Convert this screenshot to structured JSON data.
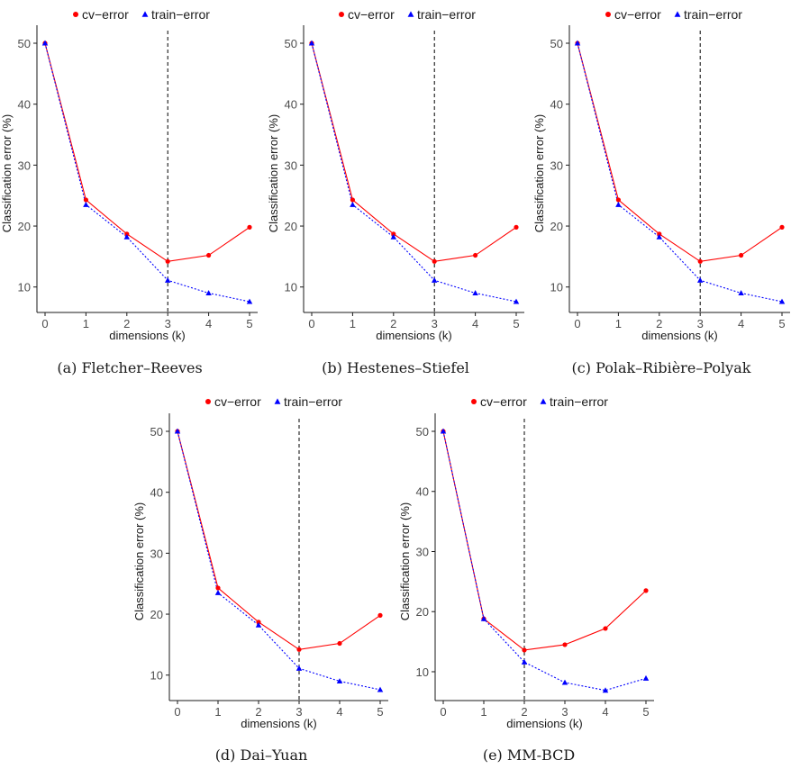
{
  "colors": {
    "cv": "#ff0000",
    "train": "#0000ff",
    "axis": "#1a1a1a",
    "vline": "#000000"
  },
  "legend": {
    "cv_label": "cv−error",
    "train_label": "train−error"
  },
  "chart_data": [
    {
      "type": "line",
      "caption": "(a) Fletcher–Reeves",
      "xlabel": "dimensions (k)",
      "ylabel": "Classification error (%)",
      "x": [
        0,
        1,
        2,
        3,
        4,
        5
      ],
      "xlim": [
        0,
        5
      ],
      "ylim": [
        7.3,
        50
      ],
      "yticks": [
        10,
        20,
        30,
        40,
        50
      ],
      "vline": 3,
      "legend": "top",
      "series": [
        {
          "name": "cv−error",
          "values": [
            50,
            24.3,
            18.7,
            14.2,
            15.2,
            19.8
          ]
        },
        {
          "name": "train−error",
          "values": [
            50,
            23.5,
            18.2,
            11.1,
            9.0,
            7.6
          ]
        }
      ]
    },
    {
      "type": "line",
      "caption": "(b) Hestenes–Stiefel",
      "xlabel": "dimensions (k)",
      "ylabel": "Classification error (%)",
      "x": [
        0,
        1,
        2,
        3,
        4,
        5
      ],
      "xlim": [
        0,
        5
      ],
      "ylim": [
        7.3,
        50
      ],
      "yticks": [
        10,
        20,
        30,
        40,
        50
      ],
      "vline": 3,
      "legend": "top",
      "series": [
        {
          "name": "cv−error",
          "values": [
            50,
            24.3,
            18.7,
            14.2,
            15.2,
            19.8
          ]
        },
        {
          "name": "train−error",
          "values": [
            50,
            23.5,
            18.2,
            11.1,
            9.0,
            7.6
          ]
        }
      ]
    },
    {
      "type": "line",
      "caption": "(c) Polak–Ribière–Polyak",
      "xlabel": "dimensions (k)",
      "ylabel": "Classification error (%)",
      "x": [
        0,
        1,
        2,
        3,
        4,
        5
      ],
      "xlim": [
        0,
        5
      ],
      "ylim": [
        7.3,
        50
      ],
      "yticks": [
        10,
        20,
        30,
        40,
        50
      ],
      "vline": 3,
      "legend": "top",
      "series": [
        {
          "name": "cv−error",
          "values": [
            50,
            24.3,
            18.7,
            14.2,
            15.2,
            19.8
          ]
        },
        {
          "name": "train−error",
          "values": [
            50,
            23.5,
            18.2,
            11.1,
            9.0,
            7.6
          ]
        }
      ]
    },
    {
      "type": "line",
      "caption": "(d) Dai–Yuan",
      "xlabel": "dimensions (k)",
      "ylabel": "Classification error (%)",
      "x": [
        0,
        1,
        2,
        3,
        4,
        5
      ],
      "xlim": [
        0,
        5
      ],
      "ylim": [
        7.3,
        50
      ],
      "yticks": [
        10,
        20,
        30,
        40,
        50
      ],
      "vline": 3,
      "legend": "top",
      "series": [
        {
          "name": "cv−error",
          "values": [
            50,
            24.3,
            18.7,
            14.2,
            15.2,
            19.8
          ]
        },
        {
          "name": "train−error",
          "values": [
            50,
            23.5,
            18.2,
            11.1,
            9.0,
            7.6
          ]
        }
      ]
    },
    {
      "type": "line",
      "caption": "(e) MM-BCD",
      "xlabel": "dimensions (k)",
      "ylabel": "Classification error (%)",
      "x": [
        0,
        1,
        2,
        3,
        4,
        5
      ],
      "xlim": [
        0,
        5
      ],
      "ylim": [
        6.7,
        50
      ],
      "yticks": [
        10,
        20,
        30,
        40,
        50
      ],
      "vline": 2,
      "legend": "top",
      "series": [
        {
          "name": "cv−error",
          "values": [
            50,
            18.8,
            13.6,
            14.5,
            17.2,
            23.5
          ]
        },
        {
          "name": "train−error",
          "values": [
            50,
            18.8,
            11.6,
            8.2,
            6.9,
            8.9
          ]
        }
      ]
    }
  ]
}
